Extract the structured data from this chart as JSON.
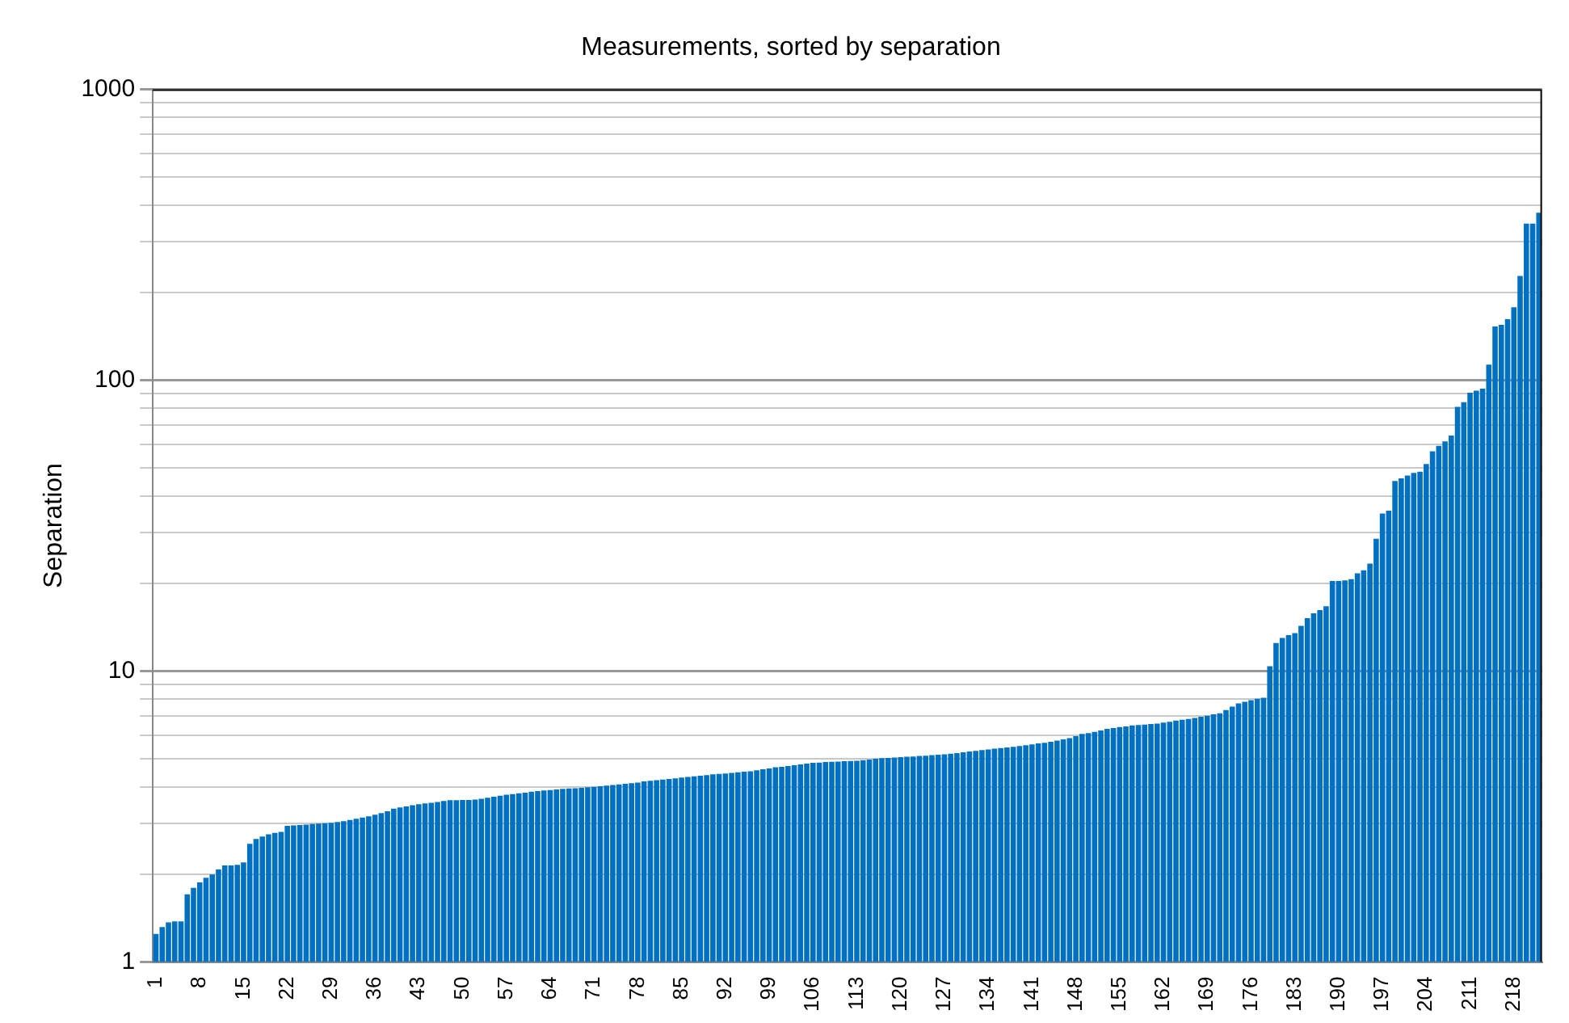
{
  "chart_data": {
    "type": "bar",
    "title": "Measurements, sorted by separation",
    "ylabel": "Separation",
    "categories": [
      "1",
      null,
      null,
      null,
      null,
      null,
      null,
      "8",
      null,
      null,
      null,
      null,
      null,
      null,
      "15",
      null,
      null,
      null,
      null,
      null,
      null,
      "22",
      null,
      null,
      null,
      null,
      null,
      null,
      "29",
      null,
      null,
      null,
      null,
      null,
      null,
      "36",
      null,
      null,
      null,
      null,
      null,
      null,
      "43",
      null,
      null,
      null,
      null,
      null,
      null,
      "50",
      null,
      null,
      null,
      null,
      null,
      null,
      "57",
      null,
      null,
      null,
      null,
      null,
      null,
      "64",
      null,
      null,
      null,
      null,
      null,
      null,
      "71",
      null,
      null,
      null,
      null,
      null,
      null,
      "78",
      null,
      null,
      null,
      null,
      null,
      null,
      "85",
      null,
      null,
      null,
      null,
      null,
      null,
      "92",
      null,
      null,
      null,
      null,
      null,
      null,
      "99",
      null,
      null,
      null,
      null,
      null,
      null,
      "106",
      null,
      null,
      null,
      null,
      null,
      null,
      "113",
      null,
      null,
      null,
      null,
      null,
      null,
      "120",
      null,
      null,
      null,
      null,
      null,
      null,
      "127",
      null,
      null,
      null,
      null,
      null,
      null,
      "134",
      null,
      null,
      null,
      null,
      null,
      null,
      "141",
      null,
      null,
      null,
      null,
      null,
      null,
      "148",
      null,
      null,
      null,
      null,
      null,
      null,
      "155",
      null,
      null,
      null,
      null,
      null,
      null,
      "162",
      null,
      null,
      null,
      null,
      null,
      null,
      "169",
      null,
      null,
      null,
      null,
      null,
      null,
      "176",
      null,
      null,
      null,
      null,
      null,
      null,
      "183",
      null,
      null,
      null,
      null,
      null,
      null,
      "190",
      null,
      null,
      null,
      null,
      null,
      null,
      "197",
      null,
      null,
      null,
      null,
      null,
      null,
      "204",
      null,
      null,
      null,
      null,
      null,
      null,
      "211",
      null,
      null,
      null,
      null,
      null,
      null,
      "218",
      null,
      null,
      null,
      null
    ],
    "values": [
      1.25,
      1.32,
      1.37,
      1.38,
      1.38,
      1.71,
      1.8,
      1.88,
      1.95,
      2.0,
      2.08,
      2.15,
      2.15,
      2.16,
      2.2,
      2.55,
      2.65,
      2.7,
      2.75,
      2.78,
      2.8,
      2.94,
      2.95,
      2.96,
      2.97,
      2.98,
      2.99,
      3.0,
      3.01,
      3.03,
      3.05,
      3.08,
      3.11,
      3.14,
      3.17,
      3.21,
      3.25,
      3.3,
      3.37,
      3.4,
      3.43,
      3.46,
      3.49,
      3.51,
      3.53,
      3.55,
      3.58,
      3.6,
      3.6,
      3.61,
      3.61,
      3.62,
      3.64,
      3.67,
      3.7,
      3.73,
      3.76,
      3.78,
      3.8,
      3.82,
      3.85,
      3.87,
      3.89,
      3.9,
      3.92,
      3.94,
      3.95,
      3.96,
      3.97,
      3.99,
      4.0,
      4.02,
      4.04,
      4.06,
      4.08,
      4.1,
      4.12,
      4.14,
      4.18,
      4.2,
      4.22,
      4.24,
      4.26,
      4.28,
      4.31,
      4.33,
      4.35,
      4.37,
      4.39,
      4.42,
      4.43,
      4.45,
      4.47,
      4.49,
      4.51,
      4.53,
      4.56,
      4.6,
      4.63,
      4.67,
      4.69,
      4.72,
      4.75,
      4.78,
      4.81,
      4.84,
      4.85,
      4.87,
      4.88,
      4.89,
      4.9,
      4.91,
      4.92,
      4.94,
      4.97,
      5.0,
      5.02,
      5.03,
      5.05,
      5.06,
      5.08,
      5.09,
      5.11,
      5.12,
      5.14,
      5.16,
      5.18,
      5.2,
      5.23,
      5.26,
      5.29,
      5.32,
      5.35,
      5.38,
      5.41,
      5.44,
      5.47,
      5.49,
      5.53,
      5.56,
      5.6,
      5.64,
      5.67,
      5.72,
      5.77,
      5.83,
      5.88,
      5.98,
      6.08,
      6.12,
      6.18,
      6.25,
      6.33,
      6.37,
      6.42,
      6.46,
      6.51,
      6.53,
      6.55,
      6.58,
      6.6,
      6.65,
      6.7,
      6.76,
      6.8,
      6.85,
      6.9,
      6.97,
      7.03,
      7.1,
      7.16,
      7.35,
      7.55,
      7.74,
      7.85,
      7.95,
      8.03,
      8.1,
      10.4,
      12.5,
      13.0,
      13.3,
      13.5,
      14.3,
      15.2,
      15.8,
      16.2,
      16.7,
      20.4,
      20.4,
      20.5,
      20.7,
      21.7,
      22.2,
      23.4,
      28.5,
      34.8,
      35.6,
      45,
      46,
      47,
      48,
      48.5,
      51.5,
      57,
      59.5,
      61.6,
      64.5,
      81,
      84,
      90.6,
      92,
      93.5,
      113,
      153,
      155,
      162,
      178,
      228,
      345,
      345,
      376
    ],
    "color": "#0070c0",
    "log": true,
    "ylim": [
      1,
      1000
    ],
    "yticks": [
      1,
      {
        "value": 2,
        "label": null
      },
      {
        "value": 3,
        "label": null
      },
      {
        "value": 4,
        "label": null
      },
      {
        "value": 5,
        "label": null
      },
      {
        "value": 6,
        "label": null
      },
      {
        "value": 7,
        "label": null
      },
      {
        "value": 8,
        "label": null
      },
      {
        "value": 9,
        "label": null
      },
      10,
      {
        "value": 20,
        "label": null
      },
      {
        "value": 30,
        "label": null
      },
      {
        "value": 40,
        "label": null
      },
      {
        "value": 50,
        "label": null
      },
      {
        "value": 60,
        "label": null
      },
      {
        "value": 70,
        "label": null
      },
      {
        "value": 80,
        "label": null
      },
      {
        "value": 90,
        "label": null
      },
      100,
      {
        "value": 200,
        "label": null
      },
      {
        "value": 300,
        "label": null
      },
      {
        "value": 400,
        "label": null
      },
      {
        "value": 500,
        "label": null
      },
      {
        "value": 600,
        "label": null
      },
      {
        "value": 700,
        "label": null
      },
      {
        "value": 800,
        "label": null
      },
      {
        "value": 900,
        "label": null
      },
      1000
    ],
    "grid": "y"
  }
}
